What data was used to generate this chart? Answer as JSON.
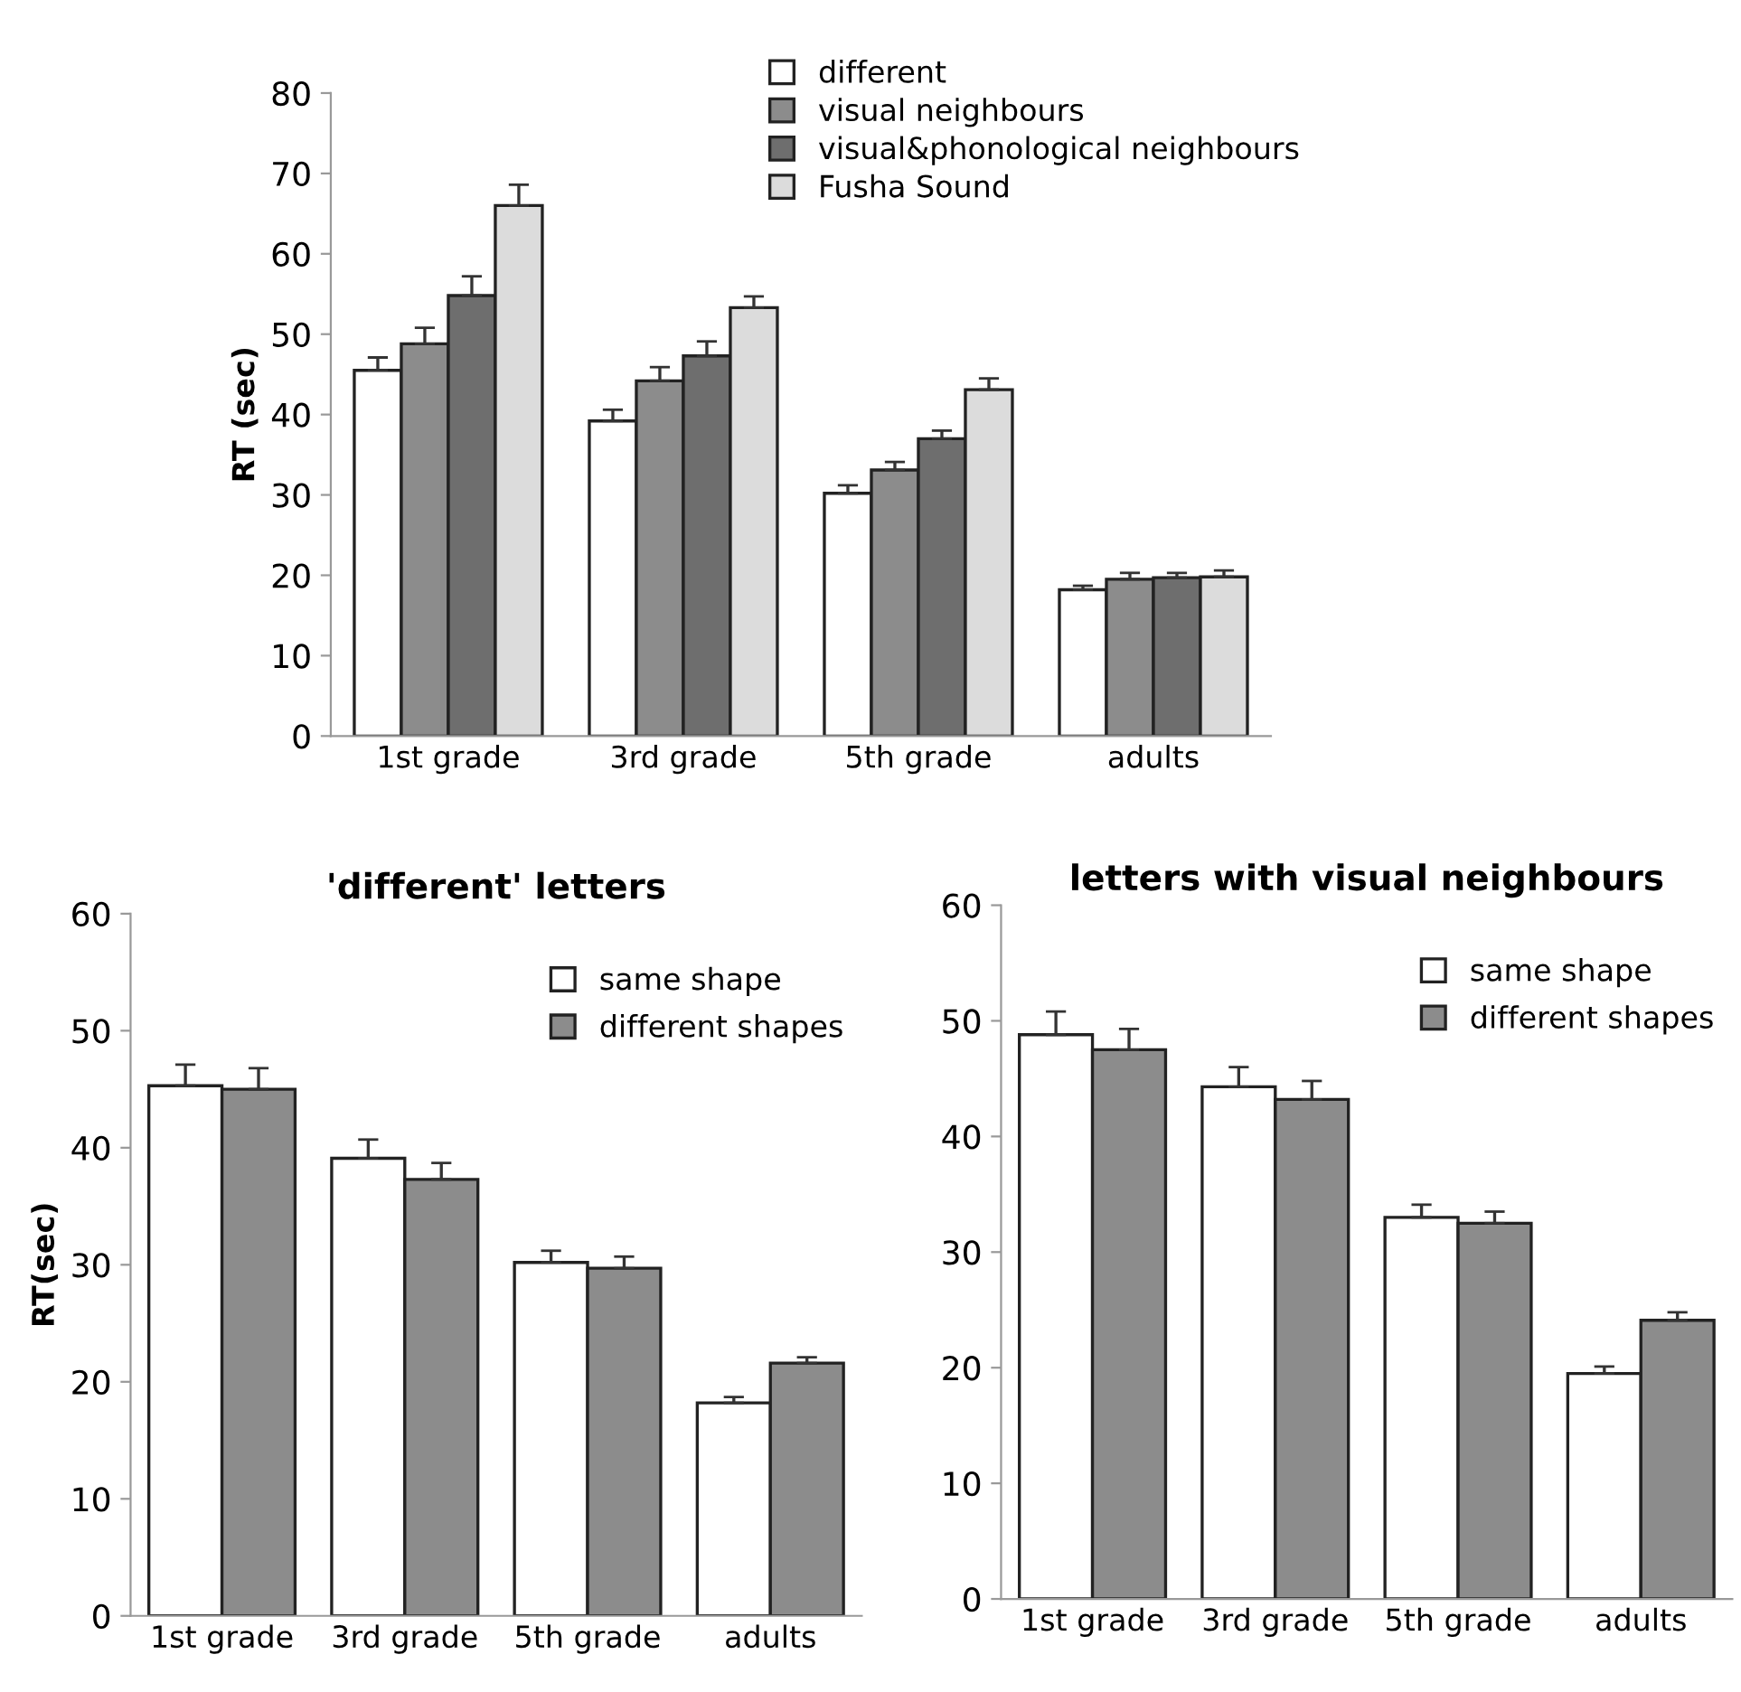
{
  "chart_data": [
    {
      "type": "bar",
      "ylabel": "RT (sec)",
      "categories": [
        "1st grade",
        "3rd grade",
        "5th grade",
        "adults"
      ],
      "ylim": [
        0,
        80
      ],
      "yticks": [
        0,
        10,
        20,
        30,
        40,
        50,
        60,
        70,
        80
      ],
      "legend": "top right",
      "grid": false,
      "series": [
        {
          "name": "different",
          "color": "#ffffff",
          "values": [
            45.5,
            39.2,
            30.2,
            18.2
          ],
          "errors": [
            1.6,
            1.4,
            1.0,
            0.5
          ]
        },
        {
          "name": "visual neighbours",
          "color": "#8c8c8c",
          "values": [
            48.8,
            44.2,
            33.1,
            19.5
          ],
          "errors": [
            2.0,
            1.7,
            1.0,
            0.8
          ]
        },
        {
          "name": "visual&phonological neighbours",
          "color": "#6e6e6e",
          "values": [
            54.8,
            47.3,
            37.0,
            19.7
          ],
          "errors": [
            2.4,
            1.8,
            1.0,
            0.6
          ]
        },
        {
          "name": "Fusha Sound",
          "color": "#dcdcdc",
          "values": [
            66.0,
            53.3,
            43.1,
            19.8
          ],
          "errors": [
            2.6,
            1.4,
            1.4,
            0.8
          ]
        }
      ]
    },
    {
      "type": "bar",
      "title": "'different' letters",
      "ylabel": "RT(sec)",
      "categories": [
        "1st grade",
        "3rd grade",
        "5th grade",
        "adults"
      ],
      "ylim": [
        0,
        60
      ],
      "yticks": [
        0,
        10,
        20,
        30,
        40,
        50,
        60
      ],
      "legend": "top right",
      "grid": false,
      "series": [
        {
          "name": "same shape",
          "color": "#ffffff",
          "values": [
            45.3,
            39.1,
            30.2,
            18.2
          ],
          "errors": [
            1.8,
            1.6,
            1.0,
            0.5
          ]
        },
        {
          "name": "different shapes",
          "color": "#8c8c8c",
          "values": [
            45.0,
            37.3,
            29.7,
            21.6
          ],
          "errors": [
            1.8,
            1.4,
            1.0,
            0.5
          ]
        }
      ]
    },
    {
      "type": "bar",
      "title": "letters with visual neighbours",
      "categories": [
        "1st grade",
        "3rd grade",
        "5th grade",
        "adults"
      ],
      "ylim": [
        0,
        60
      ],
      "yticks": [
        0,
        10,
        20,
        30,
        40,
        50,
        60
      ],
      "legend": "top right",
      "grid": false,
      "series": [
        {
          "name": "same shape",
          "color": "#ffffff",
          "values": [
            48.8,
            44.3,
            33.0,
            19.5
          ],
          "errors": [
            2.0,
            1.7,
            1.1,
            0.6
          ]
        },
        {
          "name": "different shapes",
          "color": "#8c8c8c",
          "values": [
            47.5,
            43.2,
            32.5,
            24.1
          ],
          "errors": [
            1.8,
            1.6,
            1.0,
            0.7
          ]
        }
      ]
    }
  ]
}
